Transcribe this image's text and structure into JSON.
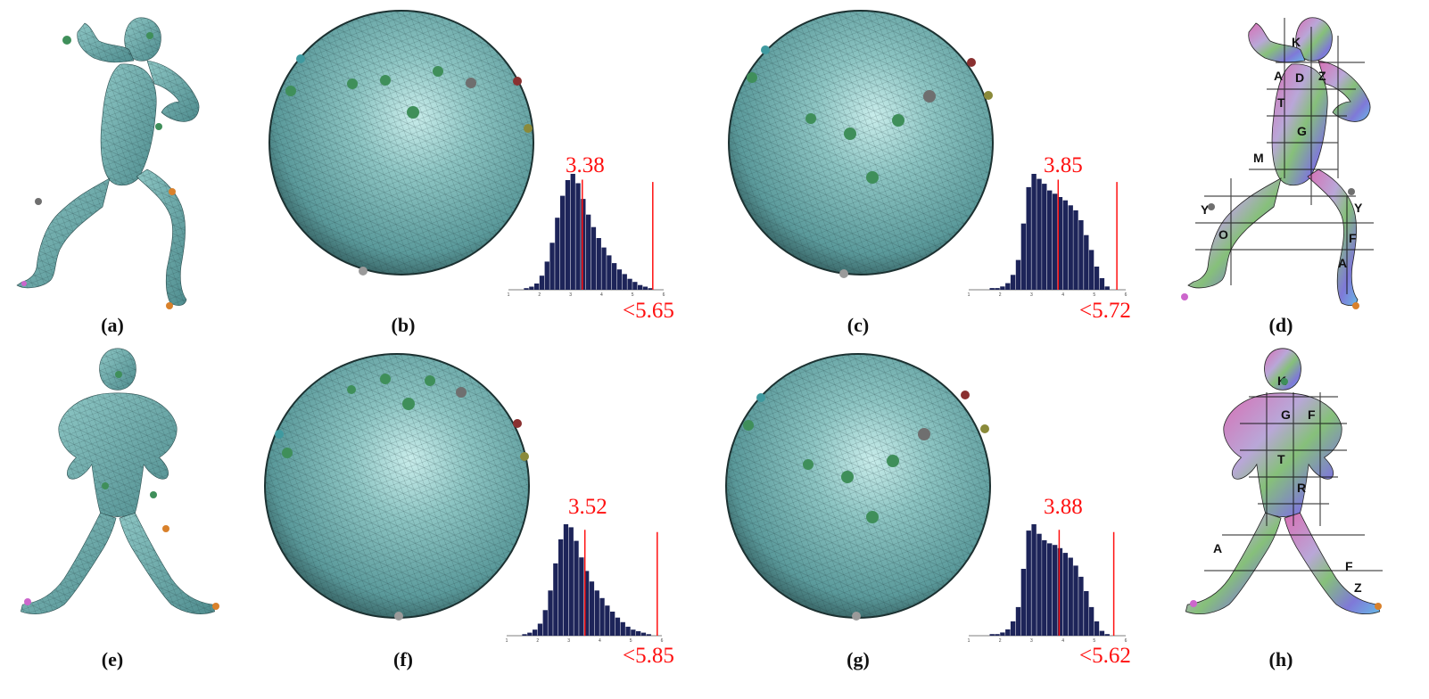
{
  "captions": [
    "(a)",
    "(b)",
    "(c)",
    "(d)",
    "(e)",
    "(f)",
    "(g)",
    "(h)"
  ],
  "colors": {
    "mesh": "#5f9ea0",
    "mesh_light": "#a9d6d4",
    "mesh_dark": "#3b6b6d",
    "histogram_bar": "#1d2459",
    "marker_line": "#ff1010",
    "landmark_green": "#3f8f5a",
    "landmark_gray": "#6f6f6f",
    "landmark_orange": "#d9812b",
    "landmark_pink": "#cc66cc"
  },
  "histograms": [
    {
      "panel": "b",
      "mean_label": "3.38",
      "max_label": "<5.65",
      "axis_ticks": [
        "1",
        "2",
        "3",
        "4",
        "5",
        "6"
      ]
    },
    {
      "panel": "c",
      "mean_label": "3.85",
      "max_label": "<5.72",
      "axis_ticks": [
        "1",
        "2",
        "3",
        "4",
        "5",
        "6"
      ]
    },
    {
      "panel": "f",
      "mean_label": "3.52",
      "max_label": "<5.85",
      "axis_ticks": [
        "1",
        "2",
        "3",
        "4",
        "5",
        "6"
      ]
    },
    {
      "panel": "g",
      "mean_label": "3.88",
      "max_label": "<5.62",
      "axis_ticks": [
        "1",
        "2",
        "3",
        "4",
        "5",
        "6"
      ]
    }
  ],
  "chart_data": [
    {
      "type": "bar",
      "title": "",
      "xlabel": "",
      "ylabel": "",
      "xlim": [
        1,
        6
      ],
      "series": [
        {
          "values": [
            0,
            0,
            0,
            1,
            2,
            4,
            9,
            18,
            30,
            46,
            60,
            70,
            74,
            68,
            58,
            48,
            40,
            33,
            27,
            22,
            17,
            13,
            10,
            7,
            5,
            3,
            2,
            1,
            0,
            0
          ]
        }
      ],
      "markers": [
        3.38,
        5.65
      ]
    },
    {
      "type": "bar",
      "title": "",
      "xlabel": "",
      "ylabel": "",
      "xlim": [
        1,
        6
      ],
      "series": [
        {
          "values": [
            0,
            0,
            0,
            0,
            1,
            1,
            2,
            4,
            9,
            18,
            40,
            62,
            70,
            67,
            64,
            60,
            58,
            56,
            54,
            51,
            48,
            42,
            33,
            24,
            14,
            7,
            2,
            0,
            0,
            0
          ]
        }
      ],
      "markers": [
        3.85,
        5.72
      ]
    },
    {
      "type": "bar",
      "title": "",
      "xlabel": "",
      "ylabel": "",
      "xlim": [
        1,
        6
      ],
      "series": [
        {
          "values": [
            0,
            0,
            0,
            1,
            2,
            4,
            8,
            17,
            30,
            48,
            64,
            74,
            72,
            63,
            52,
            43,
            36,
            30,
            25,
            20,
            16,
            12,
            9,
            6,
            4,
            3,
            2,
            1,
            0,
            0
          ]
        }
      ],
      "markers": [
        3.52,
        5.85
      ]
    },
    {
      "type": "bar",
      "title": "",
      "xlabel": "",
      "ylabel": "",
      "xlim": [
        1,
        6
      ],
      "series": [
        {
          "values": [
            0,
            0,
            0,
            0,
            1,
            1,
            2,
            4,
            9,
            18,
            42,
            66,
            70,
            64,
            60,
            58,
            57,
            55,
            52,
            49,
            44,
            37,
            28,
            18,
            9,
            3,
            1,
            0,
            0,
            0
          ]
        }
      ],
      "markers": [
        3.88,
        5.62
      ]
    }
  ]
}
